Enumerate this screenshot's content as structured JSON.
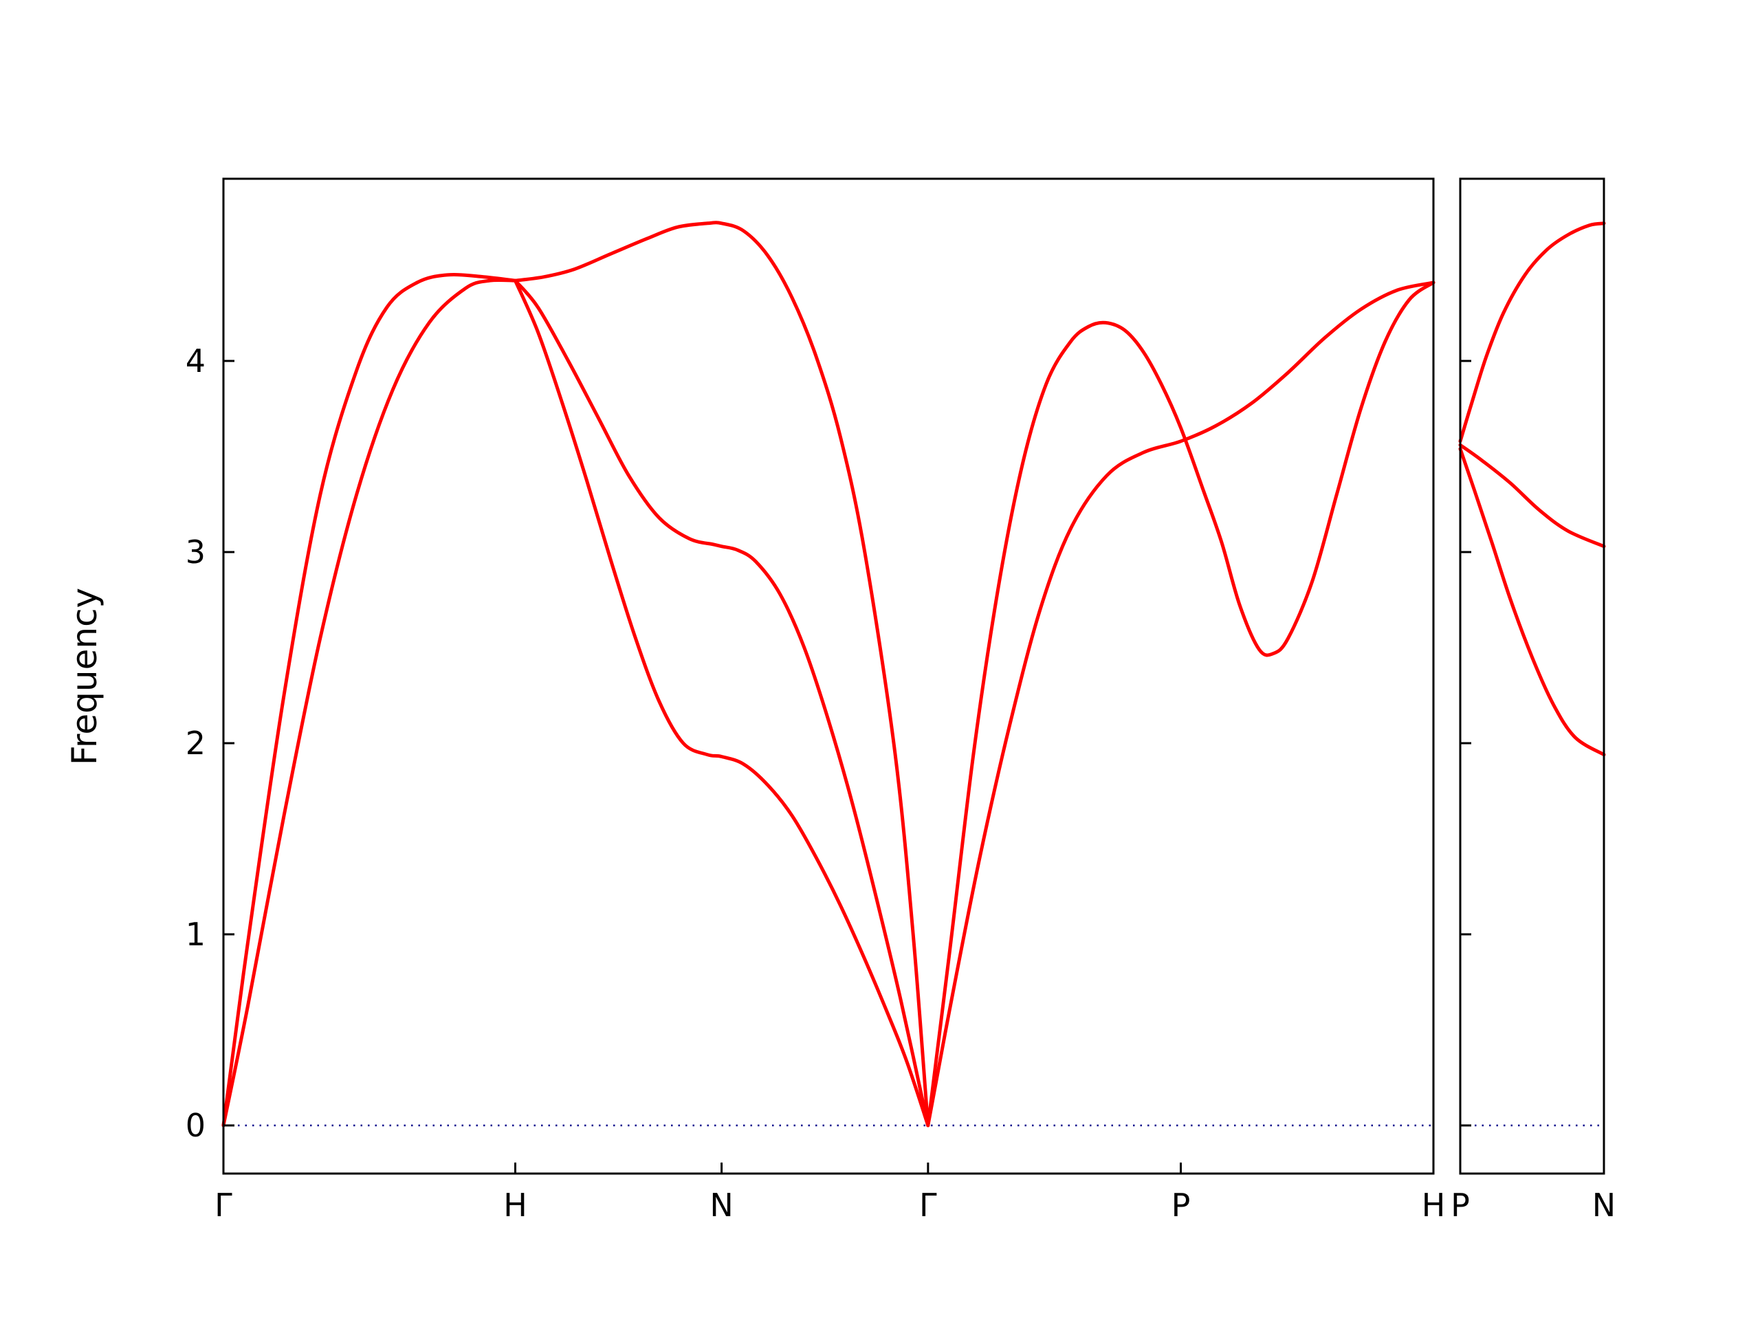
{
  "chart_data": {
    "type": "line",
    "title": "",
    "xlabel": "",
    "ylabel": "Frequency",
    "ylim": [
      -0.25,
      4.95
    ],
    "yticks": [
      0,
      1,
      2,
      3,
      4
    ],
    "grid": false,
    "legend": "none",
    "line_color": "#ff0000",
    "zero_line_color": "#00008b",
    "axis_color": "#000000",
    "description": "Phonon band structure along bcc Brillouin-zone path G-H-N-G-P-H plus separate P-N panel, with dotted zero-frequency line",
    "panels": [
      {
        "name": "main-path",
        "path": [
          "Γ",
          "H",
          "N",
          "Γ",
          "P",
          "H"
        ],
        "xticks": [
          {
            "pos": 0.0,
            "label": "Γ"
          },
          {
            "pos": 0.2412,
            "label": "H"
          },
          {
            "pos": 0.4117,
            "label": "N"
          },
          {
            "pos": 0.5823,
            "label": "Γ"
          },
          {
            "pos": 0.7912,
            "label": "P"
          },
          {
            "pos": 1.0,
            "label": "H"
          }
        ],
        "curves": [
          {
            "name": "transverse-acoustic-GH",
            "points": [
              [
                0.0,
                0.0
              ],
              [
                0.02,
                0.62
              ],
              [
                0.05,
                1.62
              ],
              [
                0.08,
                2.55
              ],
              [
                0.11,
                3.3
              ],
              [
                0.14,
                3.85
              ],
              [
                0.17,
                4.2
              ],
              [
                0.2,
                4.38
              ],
              [
                0.22,
                4.42
              ],
              [
                0.2412,
                4.42
              ]
            ]
          },
          {
            "name": "longitudinal-acoustic-GH",
            "points": [
              [
                0.0,
                0.0
              ],
              [
                0.02,
                0.95
              ],
              [
                0.05,
                2.25
              ],
              [
                0.08,
                3.3
              ],
              [
                0.11,
                3.95
              ],
              [
                0.135,
                4.28
              ],
              [
                0.16,
                4.41
              ],
              [
                0.185,
                4.45
              ],
              [
                0.215,
                4.44
              ],
              [
                0.2412,
                4.42
              ]
            ]
          },
          {
            "name": "top-branch-HNG",
            "points": [
              [
                0.2412,
                4.42
              ],
              [
                0.265,
                4.44
              ],
              [
                0.29,
                4.48
              ],
              [
                0.32,
                4.56
              ],
              [
                0.35,
                4.64
              ],
              [
                0.375,
                4.7
              ],
              [
                0.4,
                4.72
              ],
              [
                0.4117,
                4.72
              ],
              [
                0.43,
                4.68
              ],
              [
                0.45,
                4.55
              ],
              [
                0.47,
                4.33
              ],
              [
                0.49,
                4.02
              ],
              [
                0.51,
                3.6
              ],
              [
                0.53,
                3.0
              ],
              [
                0.555,
                1.95
              ],
              [
                0.57,
                1.0
              ],
              [
                0.5823,
                0.0
              ]
            ]
          },
          {
            "name": "middle-branch-HNG",
            "points": [
              [
                0.2412,
                4.42
              ],
              [
                0.26,
                4.28
              ],
              [
                0.285,
                4.0
              ],
              [
                0.31,
                3.7
              ],
              [
                0.335,
                3.4
              ],
              [
                0.36,
                3.18
              ],
              [
                0.385,
                3.07
              ],
              [
                0.405,
                3.04
              ],
              [
                0.4117,
                3.03
              ],
              [
                0.425,
                3.01
              ],
              [
                0.44,
                2.95
              ],
              [
                0.46,
                2.78
              ],
              [
                0.48,
                2.5
              ],
              [
                0.5,
                2.12
              ],
              [
                0.52,
                1.68
              ],
              [
                0.54,
                1.18
              ],
              [
                0.56,
                0.65
              ],
              [
                0.5823,
                0.0
              ]
            ]
          },
          {
            "name": "low-branch-HNG",
            "points": [
              [
                0.2412,
                4.42
              ],
              [
                0.26,
                4.15
              ],
              [
                0.28,
                3.78
              ],
              [
                0.3,
                3.38
              ],
              [
                0.32,
                2.96
              ],
              [
                0.34,
                2.56
              ],
              [
                0.36,
                2.22
              ],
              [
                0.38,
                2.0
              ],
              [
                0.4,
                1.94
              ],
              [
                0.4117,
                1.93
              ],
              [
                0.43,
                1.89
              ],
              [
                0.45,
                1.78
              ],
              [
                0.47,
                1.62
              ],
              [
                0.49,
                1.4
              ],
              [
                0.51,
                1.15
              ],
              [
                0.53,
                0.87
              ],
              [
                0.55,
                0.57
              ],
              [
                0.565,
                0.33
              ],
              [
                0.5823,
                0.0
              ]
            ]
          },
          {
            "name": "transverse-branch-GPH",
            "points": [
              [
                0.5823,
                0.0
              ],
              [
                0.6,
                0.6
              ],
              [
                0.625,
                1.4
              ],
              [
                0.65,
                2.1
              ],
              [
                0.675,
                2.7
              ],
              [
                0.7,
                3.12
              ],
              [
                0.73,
                3.4
              ],
              [
                0.76,
                3.52
              ],
              [
                0.7912,
                3.58
              ],
              [
                0.82,
                3.66
              ],
              [
                0.85,
                3.78
              ],
              [
                0.88,
                3.94
              ],
              [
                0.91,
                4.12
              ],
              [
                0.94,
                4.27
              ],
              [
                0.97,
                4.37
              ],
              [
                1.0,
                4.41
              ]
            ]
          },
          {
            "name": "longitudinal-branch-GPH",
            "points": [
              [
                0.5823,
                0.0
              ],
              [
                0.6,
                0.9
              ],
              [
                0.62,
                1.95
              ],
              [
                0.64,
                2.8
              ],
              [
                0.66,
                3.45
              ],
              [
                0.68,
                3.88
              ],
              [
                0.7,
                4.1
              ],
              [
                0.715,
                4.18
              ],
              [
                0.729,
                4.2
              ],
              [
                0.745,
                4.16
              ],
              [
                0.76,
                4.05
              ],
              [
                0.775,
                3.88
              ],
              [
                0.7912,
                3.65
              ],
              [
                0.81,
                3.32
              ],
              [
                0.825,
                3.05
              ],
              [
                0.84,
                2.72
              ],
              [
                0.856,
                2.49
              ],
              [
                0.868,
                2.47
              ],
              [
                0.88,
                2.55
              ],
              [
                0.9,
                2.85
              ],
              [
                0.92,
                3.3
              ],
              [
                0.94,
                3.75
              ],
              [
                0.96,
                4.1
              ],
              [
                0.98,
                4.32
              ],
              [
                1.0,
                4.41
              ]
            ]
          }
        ]
      },
      {
        "name": "pn-path",
        "path": [
          "P",
          "N"
        ],
        "xticks": [
          {
            "pos": 0.0,
            "label": "P"
          },
          {
            "pos": 1.0,
            "label": "N"
          }
        ],
        "curves": [
          {
            "name": "top-branch-PN",
            "points": [
              [
                0.0,
                3.58
              ],
              [
                0.08,
                3.78
              ],
              [
                0.18,
                4.02
              ],
              [
                0.3,
                4.25
              ],
              [
                0.45,
                4.45
              ],
              [
                0.6,
                4.58
              ],
              [
                0.75,
                4.66
              ],
              [
                0.9,
                4.71
              ],
              [
                1.0,
                4.72
              ]
            ]
          },
          {
            "name": "middle-branch-PN",
            "points": [
              [
                0.0,
                3.56
              ],
              [
                0.15,
                3.48
              ],
              [
                0.35,
                3.36
              ],
              [
                0.55,
                3.22
              ],
              [
                0.75,
                3.11
              ],
              [
                1.0,
                3.03
              ]
            ]
          },
          {
            "name": "low-branch-PN",
            "points": [
              [
                0.0,
                3.54
              ],
              [
                0.1,
                3.32
              ],
              [
                0.22,
                3.05
              ],
              [
                0.35,
                2.75
              ],
              [
                0.5,
                2.45
              ],
              [
                0.65,
                2.2
              ],
              [
                0.8,
                2.03
              ],
              [
                1.0,
                1.94
              ]
            ]
          }
        ]
      }
    ]
  }
}
